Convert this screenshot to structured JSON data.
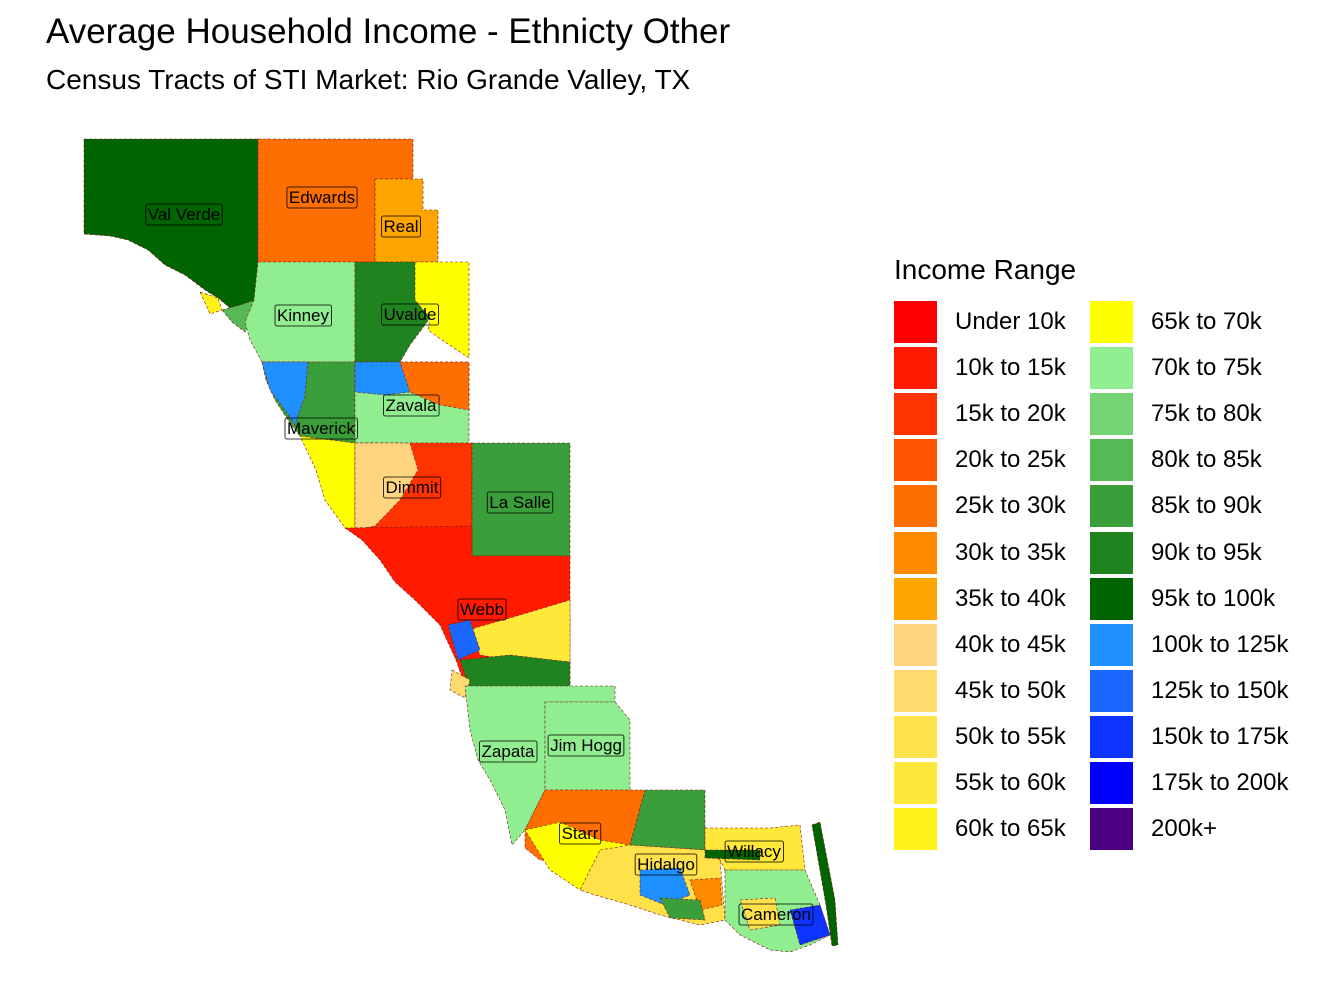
{
  "title": "Average Household Income - Ethnicty Other",
  "subtitle": "Census Tracts of STI Market: Rio Grande Valley, TX",
  "legend": {
    "title": "Income Range",
    "items": [
      {
        "label": "Under 10k",
        "color": "#ff0000"
      },
      {
        "label": "10k to 15k",
        "color": "#ff1a00"
      },
      {
        "label": "15k to 20k",
        "color": "#ff3300"
      },
      {
        "label": "20k to 25k",
        "color": "#ff5500"
      },
      {
        "label": "25k to 30k",
        "color": "#ff6e00"
      },
      {
        "label": "30k to 35k",
        "color": "#ff8a00"
      },
      {
        "label": "35k to 40k",
        "color": "#ffa500"
      },
      {
        "label": "40k to 45k",
        "color": "#ffd580"
      },
      {
        "label": "45k to 50k",
        "color": "#ffdb6e"
      },
      {
        "label": "50k to 55k",
        "color": "#ffe14a"
      },
      {
        "label": "55k to 60k",
        "color": "#ffe83a"
      },
      {
        "label": "60k to 65k",
        "color": "#fff21a"
      },
      {
        "label": "65k to 70k",
        "color": "#ffff00"
      },
      {
        "label": "70k to 75k",
        "color": "#90ee90"
      },
      {
        "label": "75k to 80k",
        "color": "#74d474"
      },
      {
        "label": "80k to 85k",
        "color": "#55b955"
      },
      {
        "label": "85k to 90k",
        "color": "#3a9e3a"
      },
      {
        "label": "90k to 95k",
        "color": "#1f831f"
      },
      {
        "label": "95k to 100k",
        "color": "#006400"
      },
      {
        "label": "100k to 125k",
        "color": "#1e90ff"
      },
      {
        "label": "125k to 150k",
        "color": "#1a66ff"
      },
      {
        "label": "150k to 175k",
        "color": "#0d33ff"
      },
      {
        "label": "175k to 200k",
        "color": "#0000ff"
      },
      {
        "label": "200k+",
        "color": "#4b0082"
      }
    ]
  },
  "counties": [
    {
      "name": "Val Verde",
      "income_range": "95k to 100k"
    },
    {
      "name": "Edwards",
      "income_range": "25k to 30k"
    },
    {
      "name": "Real",
      "income_range": "35k to 40k"
    },
    {
      "name": "Kinney",
      "income_range": "70k to 75k"
    },
    {
      "name": "Uvalde",
      "income_range": "90k to 95k"
    },
    {
      "name": "Zavala",
      "income_range": "70k to 75k"
    },
    {
      "name": "Maverick",
      "income_range": "85k to 90k"
    },
    {
      "name": "Dimmit",
      "income_range": "15k to 20k"
    },
    {
      "name": "La Salle",
      "income_range": "85k to 90k"
    },
    {
      "name": "Webb",
      "income_range": "10k to 15k"
    },
    {
      "name": "Zapata",
      "income_range": "70k to 75k"
    },
    {
      "name": "Jim Hogg",
      "income_range": "70k to 75k"
    },
    {
      "name": "Starr",
      "income_range": "60k to 65k"
    },
    {
      "name": "Hidalgo",
      "income_range": "60k to 65k"
    },
    {
      "name": "Willacy",
      "income_range": "60k to 65k"
    },
    {
      "name": "Cameron",
      "income_range": "70k to 75k"
    }
  ]
}
